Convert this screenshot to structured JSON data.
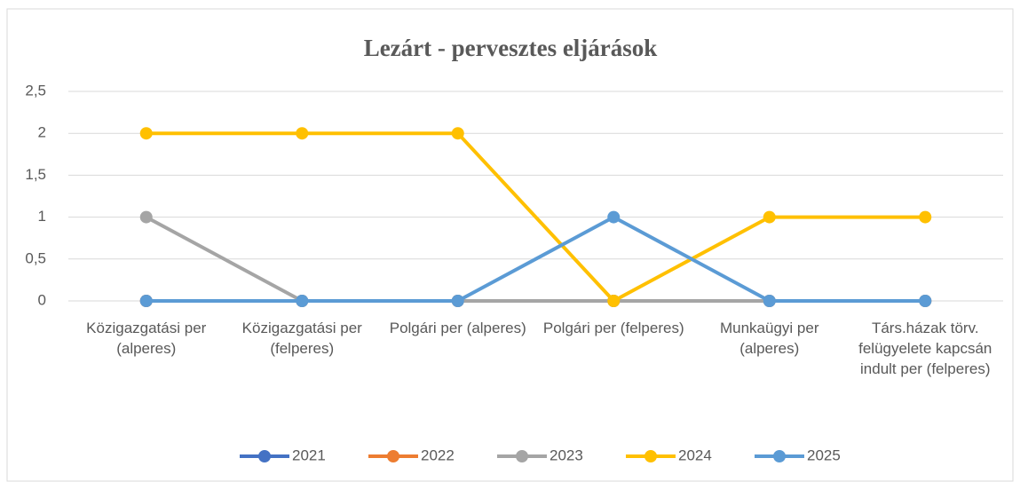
{
  "chart_data": {
    "type": "line",
    "title": "Lezárt - pervesztes eljárások",
    "categories": [
      "Közigazgatási per (alperes)",
      "Közigazgatási per (felperes)",
      "Polgári per (alperes)",
      "Polgári per (felperes)",
      "Munkaügyi per (alperes)",
      "Társ.házak törv. felügyelete kapcsán indult per (felperes)"
    ],
    "series": [
      {
        "name": "2021",
        "color": "#4472c4",
        "values": [
          0,
          0,
          0,
          0,
          0,
          0
        ]
      },
      {
        "name": "2022",
        "color": "#ed7d31",
        "values": [
          0,
          0,
          0,
          0,
          0,
          0
        ]
      },
      {
        "name": "2023",
        "color": "#a5a5a5",
        "values": [
          1,
          0,
          0,
          0,
          0,
          0
        ]
      },
      {
        "name": "2024",
        "color": "#ffc000",
        "values": [
          2,
          2,
          2,
          0,
          1,
          1
        ]
      },
      {
        "name": "2025",
        "color": "#5b9bd5",
        "values": [
          0,
          0,
          0,
          1,
          0,
          0
        ]
      }
    ],
    "ylim": [
      0,
      2.5
    ],
    "yticks": [
      0,
      {
        "value": 0.5,
        "label": "0,5"
      },
      1,
      {
        "value": 1.5,
        "label": "1,5"
      },
      2,
      {
        "value": 2.5,
        "label": "2,5"
      }
    ],
    "grid": true,
    "legend": "bottom"
  }
}
